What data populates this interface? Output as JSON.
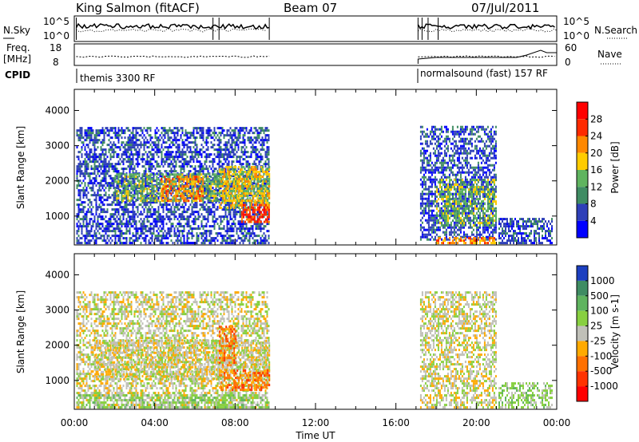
{
  "header": {
    "station": "King Salmon (fitACF)",
    "beam": "Beam 07",
    "date": "07/Jul/2011"
  },
  "info_panels": {
    "nsky_label": "N.Sky",
    "nsearch_label": "N.Search",
    "freq_label_line1": "Freq.",
    "freq_label_line2": "[MHz]",
    "nave_label": "Nave",
    "cpid_label": "CPID",
    "nsky_ticks": [
      "10^5",
      "10^0"
    ],
    "nsearch_ticks": [
      "10^5",
      "10^0"
    ],
    "freq_ticks": [
      "18",
      "8"
    ],
    "nave_ticks": [
      "60",
      "0"
    ],
    "cpid_segments": [
      {
        "start_hour": 0.0,
        "end_hour": 17.1,
        "label": "themis 3300 RF"
      },
      {
        "start_hour": 17.1,
        "end_hour": 24.0,
        "label": "normalsound (fast) 157 RF"
      }
    ]
  },
  "chart_data": [
    {
      "type": "heatmap",
      "name": "power",
      "ylabel": "Slant Range [km]",
      "ylim": [
        180,
        4600
      ],
      "yticks": [
        "1000",
        "2000",
        "3000",
        "4000"
      ],
      "colorbar": {
        "label": "Power [dB]",
        "ticks": [
          "4",
          "8",
          "12",
          "16",
          "20",
          "24",
          "28"
        ],
        "colors": [
          "#0000ff",
          "#2e3fb8",
          "#3f8c63",
          "#5fb45f",
          "#ffcc00",
          "#ff8800",
          "#ff2a00",
          "#ff0000"
        ]
      },
      "regions": [
        {
          "t0": 0.1,
          "t1": 9.7,
          "r0": 200,
          "r1": 3500,
          "level": 1
        },
        {
          "t0": 2.0,
          "t1": 9.7,
          "r0": 1400,
          "r1": 2200,
          "level": 3
        },
        {
          "t0": 4.3,
          "t1": 6.4,
          "r0": 1400,
          "r1": 2100,
          "level": 5
        },
        {
          "t0": 7.2,
          "t1": 9.7,
          "r0": 1200,
          "r1": 2400,
          "level": 4
        },
        {
          "t0": 8.3,
          "t1": 9.7,
          "r0": 800,
          "r1": 1300,
          "level": 6
        },
        {
          "t0": 17.2,
          "t1": 21.0,
          "r0": 300,
          "r1": 3500,
          "level": 1
        },
        {
          "t0": 18.0,
          "t1": 21.0,
          "r0": 700,
          "r1": 2000,
          "level": 3
        },
        {
          "t0": 18.0,
          "t1": 21.0,
          "r0": 200,
          "r1": 400,
          "level": 5
        },
        {
          "t0": 21.1,
          "t1": 23.8,
          "r0": 200,
          "r1": 900,
          "level": 1
        }
      ]
    },
    {
      "type": "heatmap",
      "name": "velocity",
      "ylabel": "Slant Range [km]",
      "ylim": [
        180,
        4600
      ],
      "yticks": [
        "1000",
        "2000",
        "3000",
        "4000"
      ],
      "xlabel": "Time UT",
      "xlim": [
        0,
        24
      ],
      "xticks": [
        "00:00",
        "04:00",
        "08:00",
        "12:00",
        "16:00",
        "20:00",
        "00:00"
      ],
      "colorbar": {
        "label": "Velocity [m s-1]",
        "ticks": [
          "1000",
          "500",
          "100",
          "25",
          "-25",
          "-100",
          "-500",
          "-1000"
        ],
        "colors": [
          "#1c3fc0",
          "#3f8c63",
          "#5fb45f",
          "#88d040",
          "#c0c0b8",
          "#ffaa00",
          "#ff7000",
          "#ff3300",
          "#ff0000"
        ]
      },
      "regions": [
        {
          "t0": 0.1,
          "t1": 9.7,
          "r0": 200,
          "r1": 3500,
          "level": 4
        },
        {
          "t0": 0.1,
          "t1": 9.7,
          "r0": 200,
          "r1": 600,
          "level": 3
        },
        {
          "t0": 1.0,
          "t1": 9.7,
          "r0": 1000,
          "r1": 2100,
          "level": 4
        },
        {
          "t0": 7.2,
          "t1": 9.7,
          "r0": 700,
          "r1": 1300,
          "level": 6
        },
        {
          "t0": 7.2,
          "t1": 8.0,
          "r0": 1400,
          "r1": 2500,
          "level": 6
        },
        {
          "t0": 17.2,
          "t1": 21.0,
          "r0": 200,
          "r1": 3500,
          "level": 4
        },
        {
          "t0": 21.1,
          "t1": 23.8,
          "r0": 200,
          "r1": 900,
          "level": 3
        }
      ]
    }
  ]
}
